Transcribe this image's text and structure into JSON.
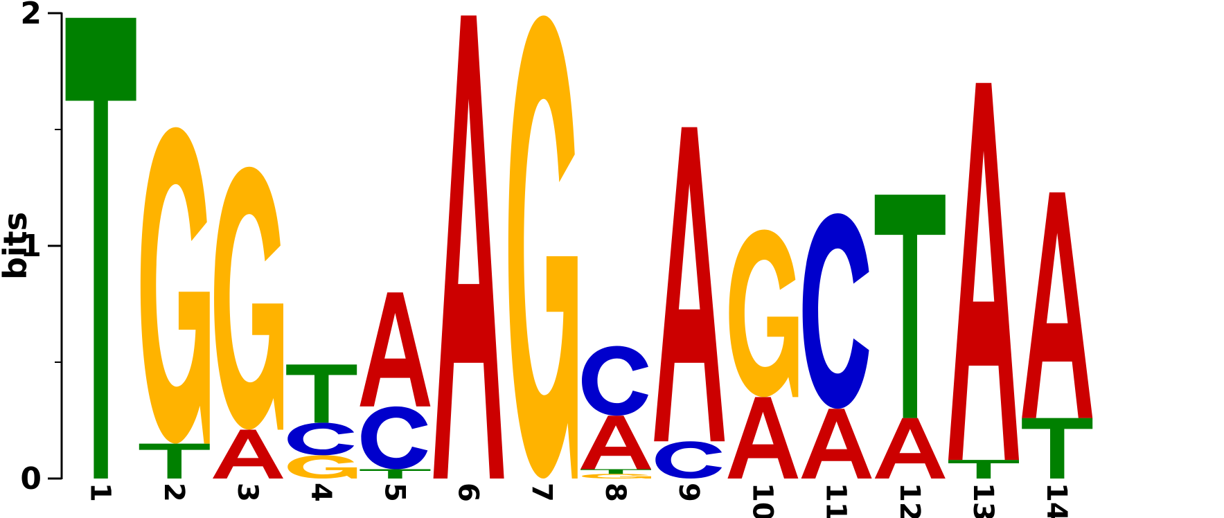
{
  "chart_data": {
    "type": "sequence-logo",
    "title": "",
    "xlabel": "",
    "ylabel": "bits",
    "ylim": [
      0,
      2
    ],
    "yticks": [
      "0",
      "1",
      "2"
    ],
    "positions": [
      {
        "label": "1",
        "stack": [
          {
            "letter": "T",
            "bits": 1.98
          }
        ]
      },
      {
        "label": "2",
        "stack": [
          {
            "letter": "T",
            "bits": 0.15
          },
          {
            "letter": "G",
            "bits": 1.36
          }
        ]
      },
      {
        "label": "3",
        "stack": [
          {
            "letter": "A",
            "bits": 0.21
          },
          {
            "letter": "G",
            "bits": 1.13
          }
        ]
      },
      {
        "label": "4",
        "stack": [
          {
            "letter": "G",
            "bits": 0.1
          },
          {
            "letter": "C",
            "bits": 0.14
          },
          {
            "letter": "T",
            "bits": 0.25
          }
        ]
      },
      {
        "label": "5",
        "stack": [
          {
            "letter": "T",
            "bits": 0.04
          },
          {
            "letter": "C",
            "bits": 0.27
          },
          {
            "letter": "A",
            "bits": 0.49
          }
        ]
      },
      {
        "label": "6",
        "stack": [
          {
            "letter": "A",
            "bits": 1.99
          }
        ]
      },
      {
        "label": "7",
        "stack": [
          {
            "letter": "G",
            "bits": 1.99
          }
        ]
      },
      {
        "label": "8",
        "stack": [
          {
            "letter": "G",
            "bits": 0.02
          },
          {
            "letter": "T",
            "bits": 0.02
          },
          {
            "letter": "A",
            "bits": 0.23
          },
          {
            "letter": "C",
            "bits": 0.3
          }
        ]
      },
      {
        "label": "9",
        "stack": [
          {
            "letter": "C",
            "bits": 0.16
          },
          {
            "letter": "A",
            "bits": 1.35
          }
        ]
      },
      {
        "label": "10",
        "stack": [
          {
            "letter": "A",
            "bits": 0.35
          },
          {
            "letter": "G",
            "bits": 0.72
          }
        ]
      },
      {
        "label": "11",
        "stack": [
          {
            "letter": "A",
            "bits": 0.3
          },
          {
            "letter": "C",
            "bits": 0.84
          }
        ]
      },
      {
        "label": "12",
        "stack": [
          {
            "letter": "A",
            "bits": 0.26
          },
          {
            "letter": "T",
            "bits": 0.96
          }
        ]
      },
      {
        "label": "13",
        "stack": [
          {
            "letter": "T",
            "bits": 0.08
          },
          {
            "letter": "A",
            "bits": 1.62
          }
        ]
      },
      {
        "label": "14",
        "stack": [
          {
            "letter": "T",
            "bits": 0.26
          },
          {
            "letter": "A",
            "bits": 0.97
          }
        ]
      }
    ],
    "colors": {
      "A": "#cc0000",
      "C": "#0000cc",
      "G": "#ffb300",
      "T": "#008000"
    }
  }
}
